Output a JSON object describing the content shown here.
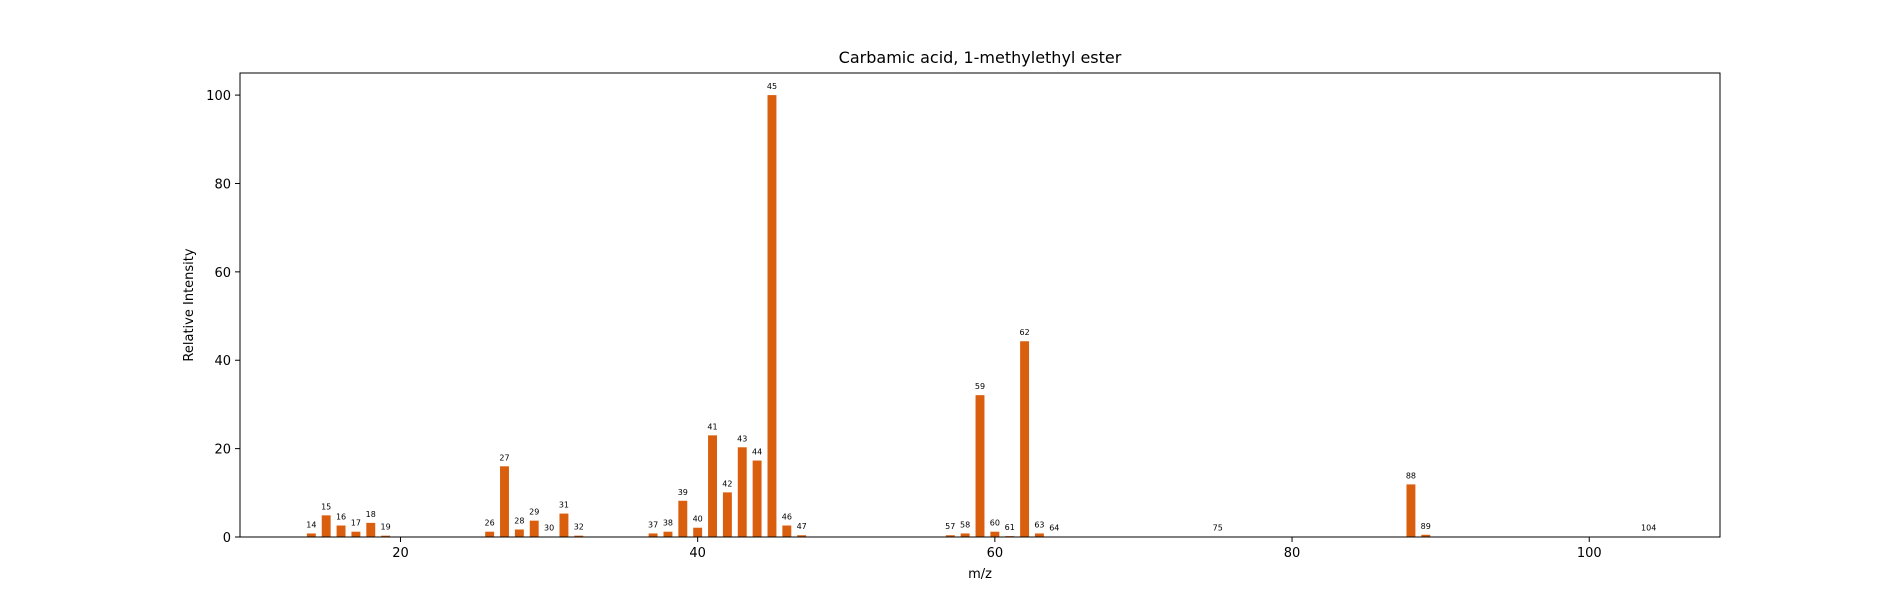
{
  "chart_data": {
    "type": "bar",
    "title": "Carbamic acid, 1-methylethyl ester",
    "xlabel": "m/z",
    "ylabel": "Relative Intensity",
    "xlim": [
      9.2,
      108.8
    ],
    "ylim": [
      0,
      105
    ],
    "xticks": [
      20,
      40,
      60,
      80,
      100
    ],
    "yticks": [
      0,
      20,
      40,
      60,
      80,
      100
    ],
    "grid": false,
    "bar_color": "#d95f0e",
    "x": [
      14,
      15,
      16,
      17,
      18,
      19,
      26,
      27,
      28,
      29,
      30,
      31,
      32,
      37,
      38,
      39,
      40,
      41,
      42,
      43,
      44,
      45,
      46,
      47,
      57,
      58,
      59,
      60,
      61,
      62,
      63,
      64,
      75,
      88,
      89,
      104
    ],
    "values": [
      0.8,
      4.9,
      2.6,
      1.2,
      3.2,
      0.3,
      1.2,
      16.0,
      1.7,
      3.7,
      0.1,
      5.3,
      0.3,
      0.8,
      1.2,
      8.2,
      2.1,
      23.0,
      10.1,
      20.3,
      17.3,
      100,
      2.6,
      0.4,
      0.4,
      0.8,
      32.1,
      1.2,
      0.2,
      44.3,
      0.8,
      0.1,
      0.1,
      11.9,
      0.5,
      0.1
    ]
  }
}
